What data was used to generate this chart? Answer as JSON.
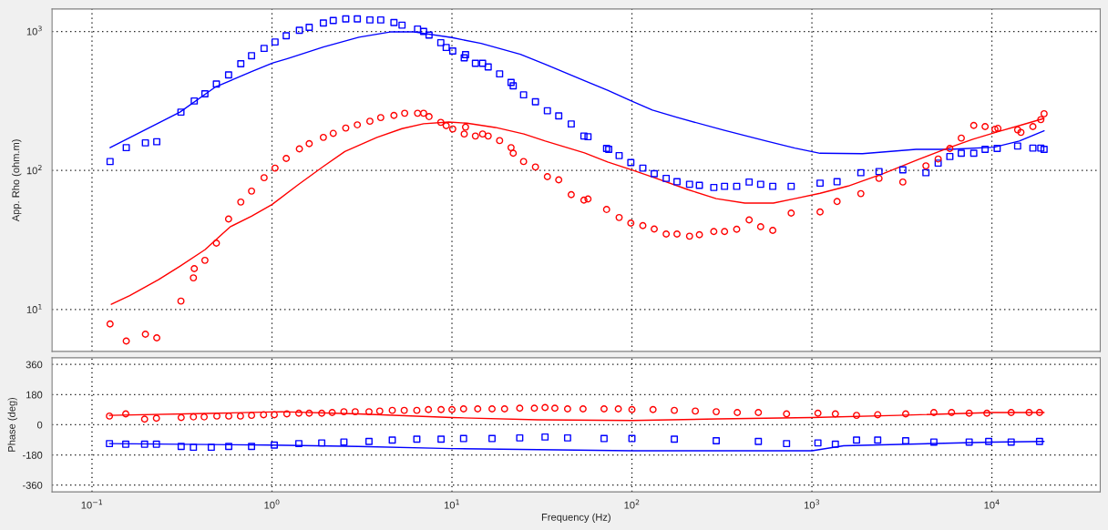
{
  "chart_data": [
    {
      "type": "scatter",
      "ylabel": "App. Rho (ohm.m)",
      "log": "xy",
      "grid": true,
      "tick_labels": "y",
      "xlim": [
        0.06,
        40000
      ],
      "ylim": [
        5,
        1450
      ],
      "xticks": [
        {
          "value": 0.1,
          "label": null
        },
        {
          "value": 1,
          "label": null
        },
        {
          "value": 10,
          "label": null
        },
        {
          "value": 100,
          "label": null
        },
        {
          "value": 1000,
          "label": null
        },
        {
          "value": 10000,
          "label": null
        }
      ],
      "yticks": [
        {
          "value": 10,
          "label": "10$^{1}$"
        },
        {
          "value": 100,
          "label": "10$^{2}$"
        },
        {
          "value": 1000,
          "label": "10$^{3}$"
        }
      ],
      "series": [
        {
          "type": "scatter",
          "marker": "square",
          "color": "#0000ff",
          "x": [
            0.126,
            0.155,
            0.198,
            0.229,
            0.312,
            0.37,
            0.424,
            0.491,
            0.574,
            0.671,
            0.77,
            0.904,
            1.04,
            1.2,
            1.42,
            1.61,
            1.93,
            2.19,
            2.57,
            2.98,
            3.5,
            4.02,
            4.76,
            5.28,
            6.44,
            6.96,
            7.46,
            8.67,
            9.29,
            10.1,
            11.7,
            11.9,
            13.5,
            14.8,
            15.9,
            18.4,
            21.3,
            21.9,
            25,
            29.1,
            33.9,
            39.2,
            46,
            54.1,
            57,
            72.3,
            74.3,
            84.9,
            98.6,
            115,
            133,
            155,
            178,
            209,
            237,
            285,
            327,
            382,
            448,
            519,
            606,
            767,
            1110,
            1380,
            1870,
            2360,
            3200,
            4300,
            5030,
            5840,
            6760,
            7930,
            9170,
            10700,
            13900,
            16900,
            18700,
            19500
          ],
          "values": [
            116,
            146,
            158,
            161,
            263,
            316,
            356,
            419,
            487,
            586,
            669,
            755,
            840,
            931,
            1020,
            1070,
            1150,
            1200,
            1230,
            1230,
            1210,
            1210,
            1160,
            1110,
            1040,
            1000,
            942,
            830,
            767,
            723,
            646,
            681,
            590,
            590,
            556,
            495,
            430,
            406,
            350,
            312,
            269,
            247,
            216,
            177,
            175,
            144,
            142,
            128,
            114,
            104,
            94.8,
            87.7,
            83,
            79.6,
            78.3,
            75.5,
            76.9,
            76.9,
            82.6,
            79.6,
            76.9,
            76.9,
            81.1,
            83,
            96.4,
            98.2,
            101,
            96.4,
            113,
            126,
            133,
            133,
            142,
            144,
            150,
            145,
            145,
            142
          ]
        },
        {
          "type": "scatter",
          "marker": "circle",
          "color": "#ff0000",
          "x": [
            0.126,
            0.155,
            0.198,
            0.229,
            0.312,
            0.366,
            0.37,
            0.424,
            0.491,
            0.574,
            0.671,
            0.77,
            0.904,
            1.04,
            1.2,
            1.42,
            1.61,
            1.93,
            2.19,
            2.57,
            2.98,
            3.5,
            4.02,
            4.76,
            5.46,
            6.44,
            6.96,
            7.46,
            8.67,
            9.29,
            10.1,
            11.7,
            11.9,
            13.5,
            14.8,
            15.9,
            18.4,
            21.3,
            21.9,
            25,
            29.1,
            33.9,
            39.2,
            46,
            54.1,
            57,
            72.3,
            84.9,
            98.6,
            115,
            133,
            155,
            178,
            209,
            237,
            285,
            327,
            382,
            448,
            519,
            606,
            767,
            1110,
            1380,
            1870,
            2360,
            3200,
            4300,
            5030,
            5840,
            6760,
            7930,
            9170,
            10400,
            10800,
            13900,
            14500,
            16900,
            18700,
            19500
          ],
          "values": [
            7.87,
            5.93,
            6.65,
            6.26,
            11.5,
            16.9,
            19.7,
            22.6,
            30,
            44.8,
            59.3,
            71.1,
            88.7,
            104,
            122,
            143,
            156,
            173,
            185,
            202,
            213,
            226,
            240,
            249,
            258,
            258,
            258,
            244,
            222,
            210,
            199,
            183,
            205,
            177,
            183,
            177,
            164,
            146,
            133,
            116,
            106,
            90.3,
            85.6,
            67,
            61.2,
            62.4,
            52.4,
            45.9,
            41.8,
            40.1,
            37.9,
            34.9,
            34.9,
            33.7,
            34.5,
            36.4,
            36.4,
            37.8,
            44.1,
            39.4,
            37.1,
            49.4,
            50.3,
            59.8,
            68.2,
            87.7,
            82.6,
            108,
            121,
            144,
            171,
            211,
            207,
            198,
            201,
            196,
            188,
            207,
            232,
            256
          ]
        },
        {
          "type": "line",
          "color": "#0000ff",
          "x": [
            0.126,
            0.234,
            0.308,
            0.487,
            0.77,
            1.01,
            1.22,
            1.93,
            3.04,
            4.61,
            6.06,
            10,
            14.5,
            24,
            33,
            54.5,
            73.3,
            100,
            130,
            178,
            323,
            558,
            804,
            1110,
            1910,
            3790,
            5840,
            10300,
            14200,
            19500
          ],
          "values": [
            146,
            219,
            263,
            400,
            514,
            593,
            638,
            773,
            908,
            994,
            994,
            903,
            820,
            685,
            581,
            443,
            377,
            315,
            272,
            241,
            195,
            163,
            145,
            133,
            132,
            142,
            142,
            147,
            163,
            193
          ]
        },
        {
          "type": "line",
          "color": "#ff0000",
          "x": [
            0.128,
            0.162,
            0.234,
            0.308,
            0.424,
            0.585,
            0.77,
            1,
            1.4,
            1.93,
            2.54,
            3.83,
            5.28,
            6.96,
            9.6,
            12.1,
            17.4,
            25.1,
            33,
            54.5,
            73.3,
            100,
            130,
            205,
            294,
            424,
            611,
            804,
            1110,
            1590,
            2510,
            3960,
            5700,
            7850,
            10800,
            14900,
            19500
          ],
          "values": [
            10.9,
            12.6,
            16.4,
            20.5,
            26.9,
            39.3,
            47,
            56.9,
            79.1,
            107,
            137,
            173,
            200,
            217,
            223,
            219,
            204,
            183,
            163,
            134,
            115,
            101,
            89.8,
            72.8,
            62.7,
            58.3,
            58.3,
            62.7,
            68.6,
            77.3,
            95.3,
            121,
            145,
            168,
            190,
            214,
            237
          ]
        }
      ]
    },
    {
      "type": "scatter",
      "xlabel": "Frequency (Hz)",
      "ylabel": "Phase (deg)",
      "log": "x",
      "grid": true,
      "xlim": [
        0.06,
        40000
      ],
      "ylim": [
        -400,
        400
      ],
      "xticks": [
        {
          "value": 0.1,
          "label": "10$^{−1}$"
        },
        {
          "value": 1,
          "label": "10$^{0}$"
        },
        {
          "value": 10,
          "label": "10$^{1}$"
        },
        {
          "value": 100,
          "label": "10$^{2}$"
        },
        {
          "value": 1000,
          "label": "10$^{3}$"
        },
        {
          "value": 10000,
          "label": "10$^{4}$"
        }
      ],
      "yticks": [
        -360,
        -180,
        0,
        180,
        360
      ],
      "series": [
        {
          "type": "scatter",
          "marker": "circle",
          "color": "#ff0000",
          "x": [
            0.125,
            0.154,
            0.196,
            0.228,
            0.313,
            0.366,
            0.42,
            0.494,
            0.575,
            0.668,
            0.77,
            0.898,
            1.03,
            1.21,
            1.41,
            1.61,
            1.89,
            2.16,
            2.51,
            2.9,
            3.46,
            3.97,
            4.66,
            5.43,
            6.38,
            7.4,
            8.7,
            10,
            11.6,
            13.9,
            16.7,
            19.6,
            23.8,
            28.7,
            32.9,
            37.3,
            43.9,
            53.5,
            70,
            84,
            100,
            131,
            172,
            225,
            294,
            385,
            504,
            723,
            1080,
            1350,
            1770,
            2320,
            3320,
            4760,
            5970,
            7480,
            9380,
            12800,
            16100,
            18400
          ],
          "values": [
            52,
            65,
            34,
            39,
            43,
            47,
            47,
            52,
            52,
            52,
            56,
            60,
            60,
            65,
            69,
            69,
            69,
            73,
            78,
            78,
            78,
            82,
            86,
            86,
            86,
            91,
            91,
            91,
            95,
            95,
            95,
            95,
            99,
            99,
            103,
            99,
            95,
            95,
            95,
            95,
            91,
            91,
            86,
            82,
            78,
            73,
            73,
            65,
            69,
            65,
            56,
            60,
            65,
            73,
            73,
            69,
            69,
            73,
            73,
            73
          ]
        },
        {
          "type": "scatter",
          "marker": "square",
          "color": "#0000ff",
          "x": [
            0.125,
            0.154,
            0.196,
            0.228,
            0.313,
            0.366,
            0.46,
            0.575,
            0.77,
            1.03,
            1.41,
            1.89,
            2.51,
            3.46,
            4.66,
            6.38,
            8.7,
            11.6,
            16.7,
            23.8,
            32.9,
            43.9,
            70,
            100,
            172,
            294,
            504,
            723,
            1080,
            1350,
            1770,
            2320,
            3320,
            4760,
            7480,
            9600,
            12800,
            18400
          ],
          "values": [
            -112,
            -116,
            -116,
            -116,
            -129,
            -134,
            -134,
            -129,
            -129,
            -121,
            -112,
            -108,
            -103,
            -99,
            -91,
            -86,
            -86,
            -82,
            -82,
            -78,
            -73,
            -78,
            -82,
            -82,
            -86,
            -95,
            -99,
            -112,
            -108,
            -116,
            -91,
            -91,
            -95,
            -103,
            -103,
            -99,
            -103,
            -99
          ]
        },
        {
          "type": "line",
          "color": "#ff0000",
          "x": [
            0.125,
            0.5,
            1.13,
            3,
            10,
            30,
            100,
            300,
            1000,
            3000,
            10000,
            19500
          ],
          "values": [
            56,
            69,
            78,
            65,
            43,
            30,
            26,
            35,
            43,
            56,
            73,
            73
          ]
        },
        {
          "type": "line",
          "color": "#0000ff",
          "x": [
            0.125,
            1,
            3,
            10,
            100,
            1000,
            1500,
            10000,
            19500
          ],
          "values": [
            -112,
            -121,
            -129,
            -142,
            -155,
            -155,
            -125,
            -103,
            -99
          ]
        }
      ]
    }
  ]
}
